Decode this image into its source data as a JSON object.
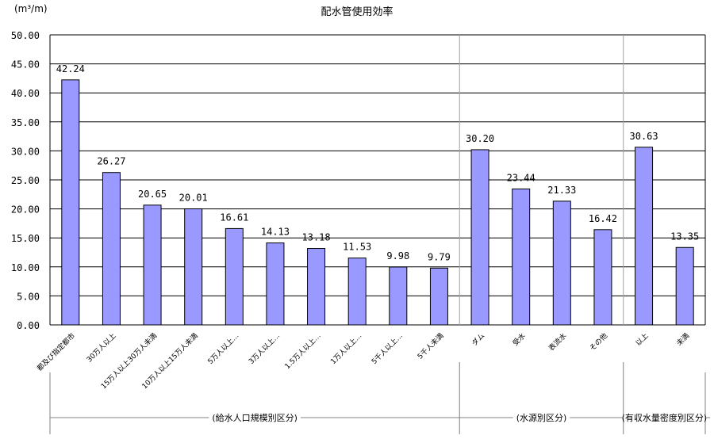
{
  "chart_data": {
    "type": "bar",
    "title": "配水管使用効率",
    "unit": "(m³/m)",
    "ylim": [
      0,
      50
    ],
    "yticks": [
      "0.00",
      "5.00",
      "10.00",
      "15.00",
      "20.00",
      "25.00",
      "30.00",
      "35.00",
      "40.00",
      "45.00",
      "50.00"
    ],
    "grid": true,
    "bar_color": "#9999ff",
    "categories": [
      "都及び指定都市",
      "30万人以上",
      "15万人以上30万人未満",
      "10万人以上15万人未満",
      "5万人以上…",
      "3万人以上…",
      "1.5万人以上…",
      "1万人以上…",
      "5千人以上…",
      "5千人未満",
      "ダム",
      "受水",
      "表流水",
      "その他",
      "以上",
      "未満"
    ],
    "values": [
      42.24,
      26.27,
      20.65,
      20.01,
      16.61,
      14.13,
      13.18,
      11.53,
      9.98,
      9.79,
      30.2,
      23.44,
      21.33,
      16.42,
      30.63,
      13.35
    ],
    "value_labels": [
      "42.24",
      "26.27",
      "20.65",
      "20.01",
      "16.61",
      "14.13",
      "13.18",
      "11.53",
      "9.98",
      "9.79",
      "30.20",
      "23.44",
      "21.33",
      "16.42",
      "30.63",
      "13.35"
    ],
    "groups": [
      {
        "label": "(給水人口規模別区分)"
      },
      {
        "label": "(水源別区分)"
      },
      {
        "label": "(有収水量密度別区分)"
      }
    ]
  }
}
